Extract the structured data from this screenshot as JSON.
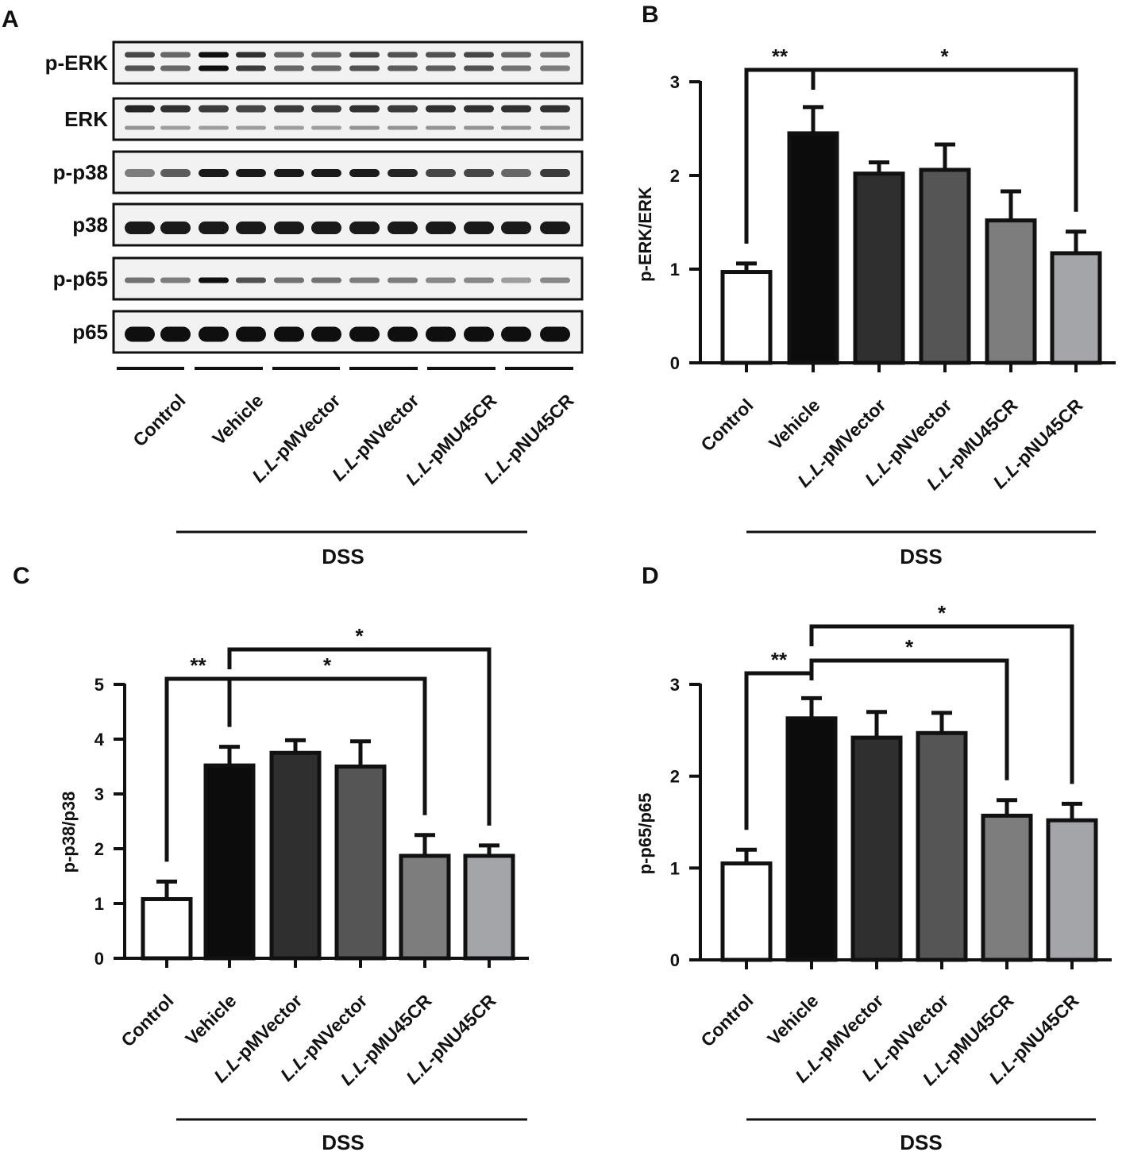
{
  "categories": [
    "Control",
    "Vehicle",
    "L.L-pMVector",
    "L.L-pNVector",
    "L.L-pMU45CR",
    "L.L-pNU45CR"
  ],
  "category_parts": [
    {
      "italic": "",
      "plain": "Control"
    },
    {
      "italic": "",
      "plain": "Vehicle"
    },
    {
      "italic": "L.L",
      "plain": "-pMVector"
    },
    {
      "italic": "L.L",
      "plain": "-pNVector"
    },
    {
      "italic": "L.L",
      "plain": "-pMU45CR"
    },
    {
      "italic": "L.L",
      "plain": "-pNU45CR"
    }
  ],
  "group_label": "DSS",
  "bar_colors": [
    "#ffffff",
    "#0c0c0c",
    "#2f2f2f",
    "#555555",
    "#7d7d7d",
    "#a3a5a8"
  ],
  "blot": {
    "panel_label": "A",
    "rows": [
      "p-ERK",
      "ERK",
      "p-p38",
      "p38",
      "p-p65",
      "p65"
    ]
  },
  "chart_data": [
    {
      "panel_label": "B",
      "type": "bar",
      "ylabel": "p-ERK/ERK",
      "ylim": [
        0,
        3
      ],
      "yticks": [
        "0",
        "1",
        "2",
        "3"
      ],
      "values": [
        0.97,
        2.45,
        2.02,
        2.06,
        1.52,
        1.17
      ],
      "errors": [
        0.09,
        0.28,
        0.12,
        0.27,
        0.31,
        0.23
      ],
      "significance": [
        {
          "from": 0,
          "to": 1,
          "label": "**"
        },
        {
          "from": 1,
          "to": 5,
          "label": "*"
        }
      ]
    },
    {
      "panel_label": "C",
      "type": "bar",
      "ylabel": "p-p38/p38",
      "ylim": [
        0,
        5
      ],
      "yticks": [
        "0",
        "1",
        "2",
        "3",
        "4",
        "5"
      ],
      "values": [
        1.08,
        3.52,
        3.75,
        3.5,
        1.87,
        1.87
      ],
      "errors": [
        0.32,
        0.34,
        0.23,
        0.46,
        0.38,
        0.19
      ],
      "significance": [
        {
          "from": 0,
          "to": 1,
          "label": "**"
        },
        {
          "from": 1,
          "to": 4,
          "label": "*"
        },
        {
          "from": 1,
          "to": 5,
          "label": "*"
        }
      ]
    },
    {
      "panel_label": "D",
      "type": "bar",
      "ylabel": "p-p65/p65",
      "ylim": [
        0,
        3
      ],
      "yticks": [
        "0",
        "1",
        "2",
        "3"
      ],
      "values": [
        1.05,
        2.63,
        2.42,
        2.47,
        1.57,
        1.52
      ],
      "errors": [
        0.15,
        0.22,
        0.28,
        0.22,
        0.17,
        0.18
      ],
      "significance": [
        {
          "from": 0,
          "to": 1,
          "label": "**"
        },
        {
          "from": 1,
          "to": 4,
          "label": "*"
        },
        {
          "from": 1,
          "to": 5,
          "label": "*"
        }
      ]
    }
  ]
}
